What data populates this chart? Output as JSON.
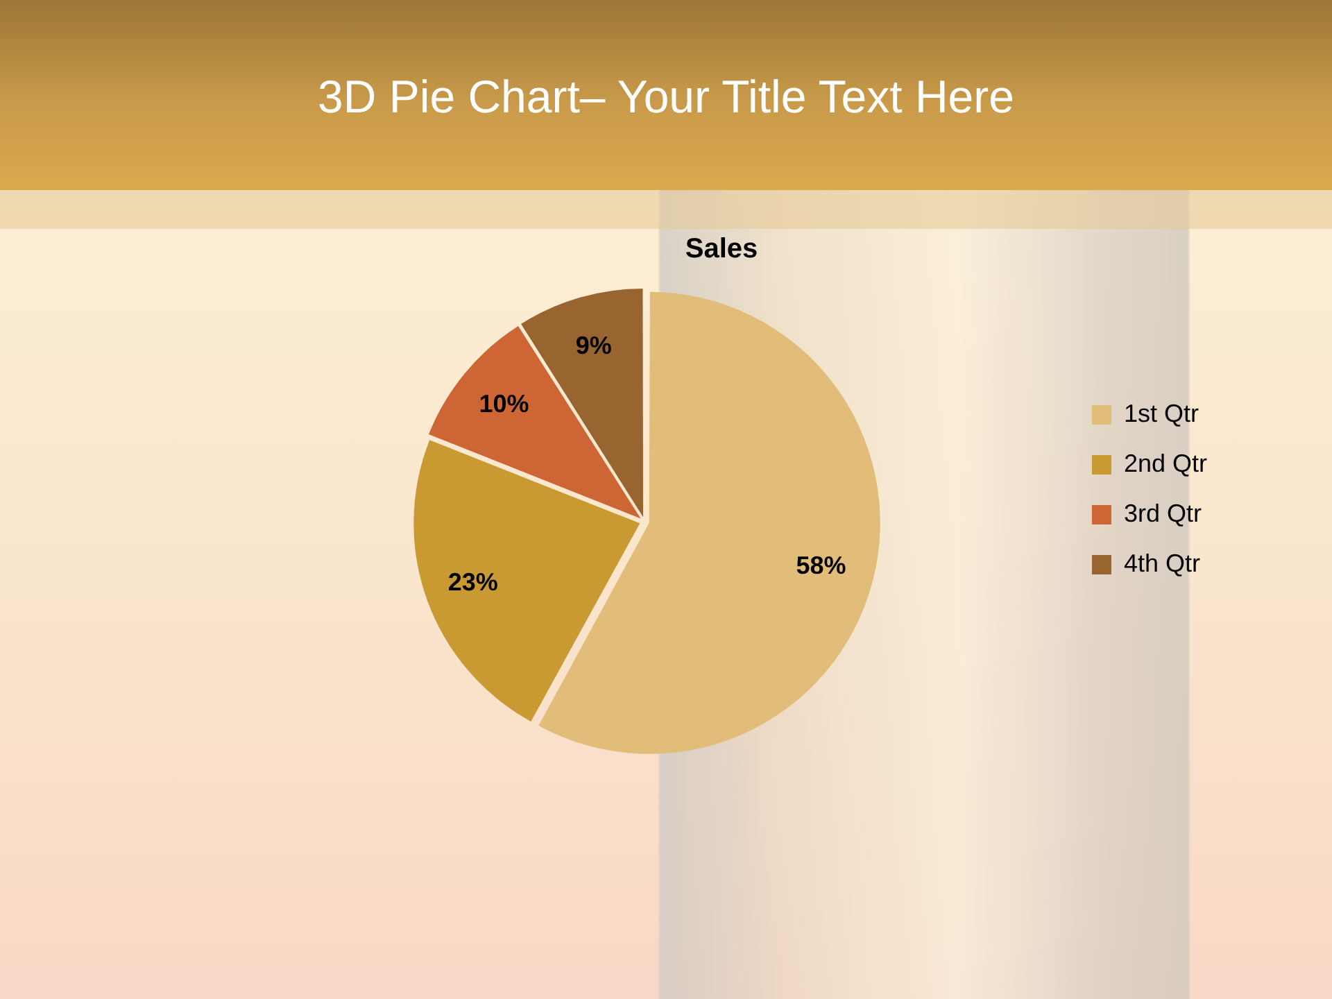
{
  "chart_data": {
    "type": "pie",
    "title": "3D Pie Chart– Your Title Text Here",
    "subtitle": "Sales",
    "categories": [
      "1st Qtr",
      "2nd Qtr",
      "3rd Qtr",
      "4th Qtr"
    ],
    "values": [
      58,
      23,
      10,
      9
    ],
    "colors": [
      "#e1bd79",
      "#c99a32",
      "#cd6634",
      "#98642f"
    ],
    "value_labels": [
      "58%",
      "23%",
      "10%",
      "9%"
    ],
    "legend": "right"
  }
}
